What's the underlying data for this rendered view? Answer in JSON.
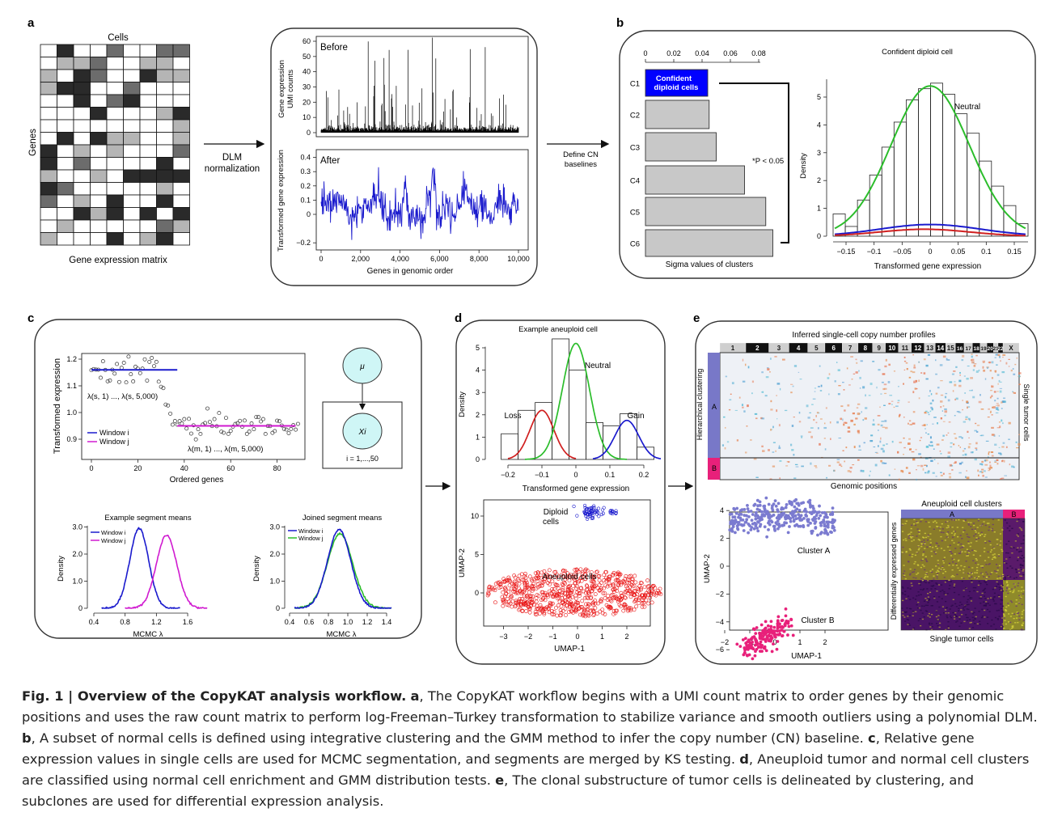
{
  "figure": {
    "panel_letters": {
      "a": "a",
      "b": "b",
      "c": "c",
      "d": "d",
      "e": "e"
    },
    "a": {
      "cells_label": "Cells",
      "genes_label": "Genes",
      "matrix_label": "Gene expression matrix",
      "arrow_label_1": "DLM",
      "arrow_label_2": "normalization",
      "before_title": "Before",
      "after_title": "After",
      "before_ylabel_1": "Gene expression",
      "before_ylabel_2": "UMI counts",
      "after_ylabel": "Transformed gene expression",
      "xlabel": "Genes in genomic order",
      "before_yticks": [
        "0",
        "10",
        "20",
        "30",
        "40",
        "50",
        "60"
      ],
      "after_yticks": [
        "−0.2",
        "0",
        "0.1",
        "0.2",
        "0.3",
        "0.4"
      ],
      "xticks": [
        "0",
        "2,000",
        "4,000",
        "6,000",
        "8,000",
        "10,000"
      ]
    },
    "b": {
      "arrow_label_1": "Define CN",
      "arrow_label_2": "baselines",
      "sigma_ticks": [
        "0",
        "0.02",
        "0.04",
        "0.06",
        "0.08"
      ],
      "clusters": [
        "C1",
        "C2",
        "C3",
        "C4",
        "C5",
        "C6"
      ],
      "sigma_values": [
        0.044,
        0.045,
        0.05,
        0.07,
        0.085,
        0.09
      ],
      "c1_label_1": "Confident",
      "c1_label_2": "diploid cells",
      "sig_label": "*P < 0.05",
      "bar_xlabel": "Sigma values of clusters",
      "hist_title": "Confident diploid cell",
      "hist_ylabel": "Density",
      "hist_xlabel": "Transformed gene expression",
      "hist_yticks": [
        "0",
        "1",
        "2",
        "3",
        "4",
        "5"
      ],
      "hist_xticks": [
        "−0.15",
        "−0.1",
        "−0.05",
        "0",
        "0.05",
        "0.1",
        "0.15"
      ],
      "neutral_label": "Neutral"
    },
    "c": {
      "ylabel": "Transformed expression",
      "xlabel": "Ordered genes",
      "yticks": [
        "0.9",
        "1.0",
        "1.1",
        "1.2"
      ],
      "xticks": [
        "0",
        "20",
        "40",
        "60",
        "80"
      ],
      "lambda_s": "λ(s, 1) ..., λ(s, 5,000)",
      "lambda_m": "λ(m, 1) ..., λ(m, 5,000)",
      "window_i": "Window i",
      "window_j": "Window j",
      "mu": "μ",
      "xi": "Xi",
      "plate": "i = 1,...,50",
      "seg_title": "Example segment means",
      "joined_title": "Joined segment means",
      "density": "Density",
      "mcmc": "MCMC λ",
      "seg_yticks": [
        "0",
        "1.0",
        "2.0",
        "3.0"
      ],
      "seg_xticks": [
        "0.4",
        "0.8",
        "1.2",
        "1.6"
      ],
      "joined_xticks": [
        "0.4",
        "0.6",
        "0.8",
        "1.0",
        "1.2",
        "1.4"
      ]
    },
    "d": {
      "hist_title": "Example aneuploid cell",
      "ylabel": "Density",
      "xlabel": "Transformed gene expression",
      "yticks": [
        "0",
        "1",
        "2",
        "3",
        "4",
        "5"
      ],
      "xticks": [
        "−0.2",
        "−0.1",
        "0",
        "0.1",
        "0.2"
      ],
      "loss": "Loss",
      "neutral": "Neutral",
      "gain": "Gain",
      "umap_ylabel": "UMAP-2",
      "umap_xlabel": "UMAP-1",
      "umap_yticks": [
        "0",
        "5",
        "10"
      ],
      "umap_xticks": [
        "−3",
        "−2",
        "−1",
        "0",
        "1",
        "2"
      ],
      "diploid_1": "Diploid",
      "diploid_2": "cells",
      "aneuploid": "Aneuploid cells"
    },
    "e": {
      "heat_title": "Inferred single-cell copy number profiles",
      "chromosomes": [
        "1",
        "2",
        "3",
        "4",
        "5",
        "6",
        "7",
        "8",
        "9",
        "10",
        "11",
        "12",
        "13",
        "14",
        "15",
        "16",
        "17",
        "18",
        "19",
        "20",
        "21",
        "22",
        "X"
      ],
      "hier": "Hierarchical clustering",
      "single_tumor": "Single tumor cells",
      "genomic": "Genomic positions",
      "cluster_a_tag": "A",
      "cluster_b_tag": "B",
      "umap_ylabel": "UMAP-2",
      "umap_xlabel": "UMAP-1",
      "umap_yticks": [
        "4",
        "2",
        "0",
        "−2",
        "−4",
        "−6"
      ],
      "umap_xticks": [
        "−2",
        "−1",
        "0",
        "1",
        "2"
      ],
      "cluster_a": "Cluster A",
      "cluster_b": "Cluster B",
      "de_title": "Aneuploid cell clusters",
      "de_ylabel": "Differentially expressed genes",
      "de_xlabel": "Single tumor cells"
    }
  },
  "caption": {
    "label": "Fig. 1 | Overview of the CopyKAT analysis workflow.",
    "a_letter": "a",
    "a_text": ", The CopyKAT workflow begins with a UMI count matrix to order genes by their genomic positions and uses the raw count matrix to perform log-Freeman–Turkey transformation to stabilize variance and smooth outliers using a polynomial DLM. ",
    "b_letter": "b",
    "b_text": ", A subset of normal cells is defined using integrative clustering and the GMM method to infer the copy number (CN) baseline. ",
    "c_letter": "c",
    "c_text": ", Relative gene expression values in single cells are used for MCMC segmentation, and segments are merged by KS testing. ",
    "d_letter": "d",
    "d_text": ", Aneuploid tumor and normal cell clusters are classified using normal cell enrichment and GMM distribution tests. ",
    "e_letter": "e",
    "e_text": ", The clonal substructure of tumor cells is delineated by clustering, and subclones are used for differential expression analysis."
  }
}
